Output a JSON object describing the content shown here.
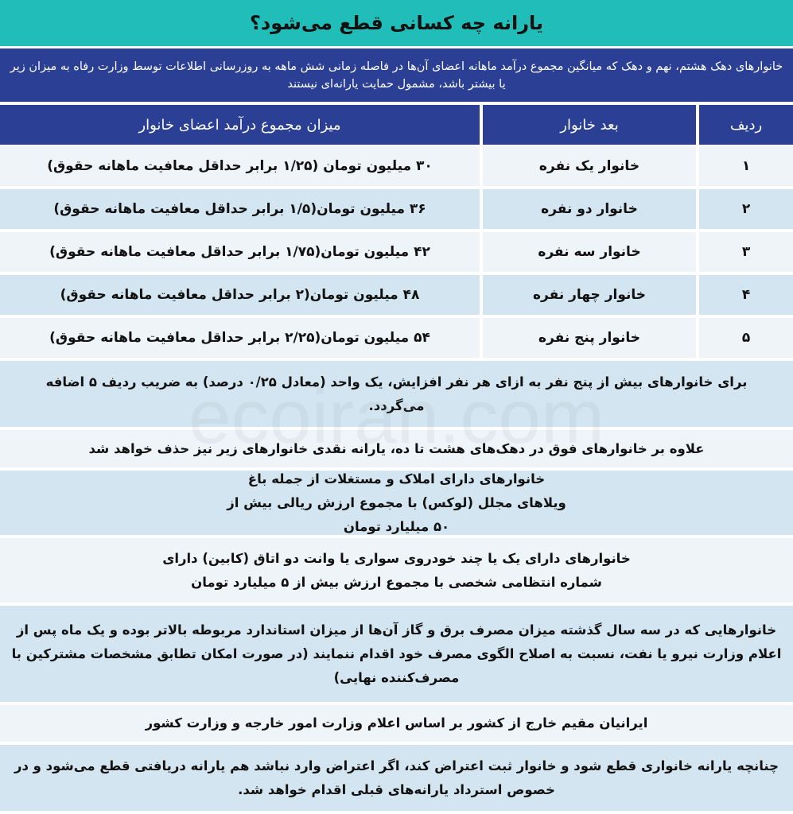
{
  "title": "یارانه چه کسانی قطع می‌شود؟",
  "intro": "خانوارهای دهک هشتم، نهم و دهک که میانگین مجموع درآمد ماهانه اعضای آن‌ها در فاصله زمانی شش ماهه به روزرسانی اطلاعات توسط وزارت رفاه به میزان زیر یا بیشتر باشد، مشمول حمایت یارانه‌ای نیستند",
  "table": {
    "headers": [
      "ردیف",
      "بعد خانوار",
      "میزان مجموع درآمد اعضای خانوار"
    ],
    "rows": [
      [
        "۱",
        "خانوار یک نفره",
        "۳۰ میلیون تومان (۱/۲۵ برابر حداقل معافیت ماهانه حقوق)"
      ],
      [
        "۲",
        "خانوار دو نفره",
        "۳۶ میلیون تومان(۱/۵ برابر حداقل معافیت ماهانه حقوق)"
      ],
      [
        "۳",
        "خانوار سه نفره",
        "۴۲ میلیون تومان(۱/۷۵ برابر حداقل معافیت ماهانه حقوق)"
      ],
      [
        "۴",
        "خانوار چهار نفره",
        "۴۸ میلیون تومان(۲ برابر حداقل معافیت ماهانه حقوق)"
      ],
      [
        "۵",
        "خانوار پنج نفره",
        "۵۴ میلیون تومان(۲/۲۵ برابر حداقل معافیت ماهانه حقوق)"
      ]
    ]
  },
  "notes": [
    "برای خانوارهای بیش از پنج نفر به ازای هر نفر افزایش، یک واحد (معادل ۰/۲۵ درصد) به ضریب ردیف ۵ اضافه می‌گردد.",
    "علاوه بر خانوارهای فوق در دهک‌های هشت تا ده، یارانه نقدی خانوارهای زیر نیز حذف خواهد شد",
    "خانوارهای دارای املاک و مستغلات از جمله باغ ویلاهای مجلل (لوکس) با مجموع ارزش ریالی بیش از ۵۰ میلیارد تومان",
    "خانوارهای دارای یک یا چند خودروی سواری یا وانت دو اتاق (کابین) دارای شماره انتظامی شخصی با مجموع ارزش بیش از ۵ میلیارد تومان",
    "خانوارهایی که در سه سال گذشته میزان مصرف برق و گاز آن‌ها از میزان استاندارد مربوطه بالاتر بوده و یک ماه پس از اعلام وزارت نیرو یا نفت، نسبت به اصلاح الگوی مصرف خود اقدام ننمایند (در صورت امکان تطابق مشخصات مشترکین با مصرف‌کننده نهایی)",
    "ایرانیان مقیم خارج از کشور بر اساس اعلام وزارت امور خارجه و وزارت کشور",
    "چنانچه یارانه خانواری قطع شود و خانوار ثبت اعتراض کند، اگر اعتراض وارد نباشد هم یارانه دریافتی قطع می‌شود و در خصوص استرداد یارانه‌های قبلی اقدام خواهد شد."
  ],
  "watermark": "ecoiran.com",
  "colors": {
    "title_bg": "#21bdb9",
    "header_bg": "#2b3f94",
    "row_light": "#eef4f7",
    "row_dark": "#d3e5f0"
  }
}
